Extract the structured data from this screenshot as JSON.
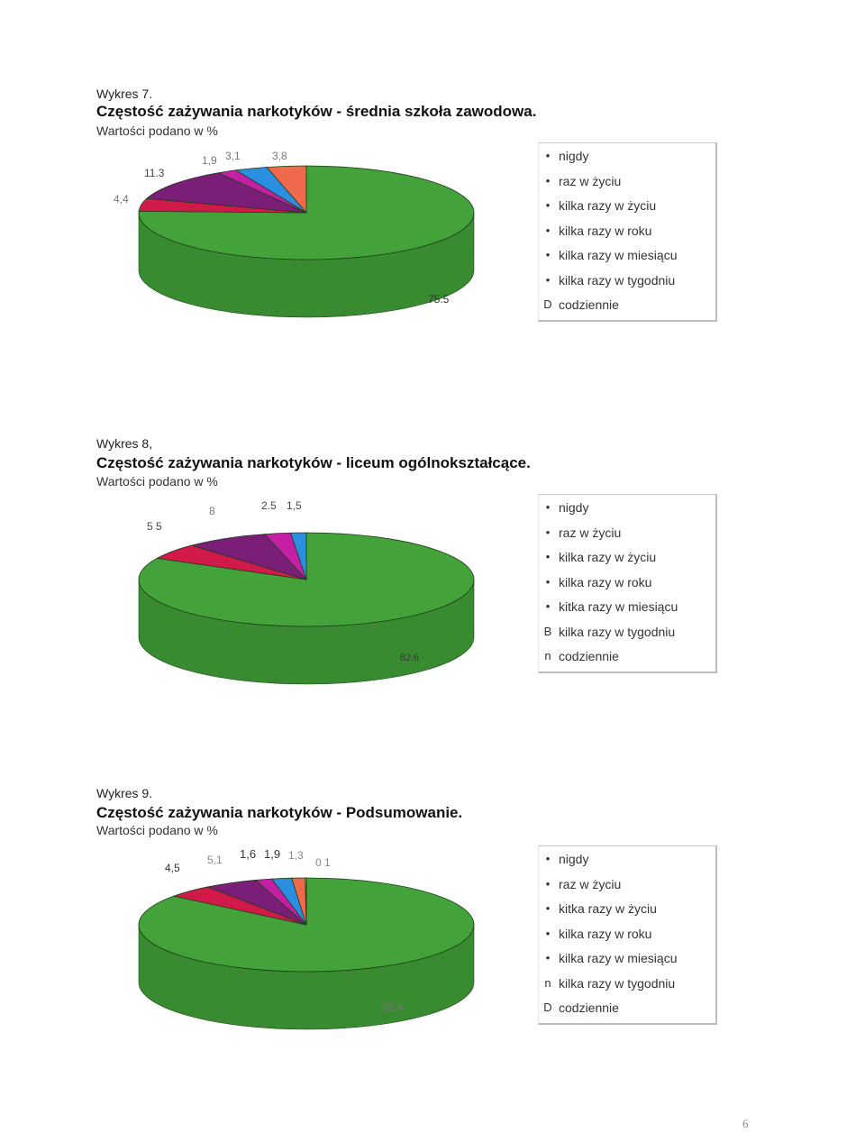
{
  "charts": [
    {
      "number_label": "Wykres  7.",
      "title": "Częstość zażywania narkotyków - średnia szkoła zawodowa.",
      "subtitle": "Wartości podano w %",
      "value_labels": [
        "75.5",
        "4,4",
        "11.3",
        "1,9",
        "3,1",
        "3,8"
      ],
      "legend": [
        {
          "marker": "•",
          "label": "nigdy"
        },
        {
          "marker": "•",
          "label": "raz w życiu"
        },
        {
          "marker": "•",
          "label": "kilka razy w życiu"
        },
        {
          "marker": "•",
          "label": "kilka razy w roku"
        },
        {
          "marker": "•",
          "label": "kilka razy w miesiącu"
        },
        {
          "marker": "•",
          "label": "kilka razy w tygodniu"
        },
        {
          "marker": "D",
          "label": "codziennie"
        }
      ]
    },
    {
      "number_label": "Wykres  8,",
      "title": "Częstość zażywania narkotyków - liceum ogólnokształcące.",
      "subtitle": "Wartości podano w %",
      "value_labels": [
        "82.6",
        "5 5",
        "8",
        "2.5",
        "1,5"
      ],
      "legend": [
        {
          "marker": "•",
          "label": "nigdy"
        },
        {
          "marker": "•",
          "label": "raz w życiu"
        },
        {
          "marker": "•",
          "label": "kilka razy w życiu"
        },
        {
          "marker": "•",
          "label": "kilka razy w roku"
        },
        {
          "marker": "•",
          "label": "kitka razy w miesiącu"
        },
        {
          "marker": "B",
          "label": "kilka razy w tygodniu"
        },
        {
          "marker": "n",
          "label": "codziennie"
        }
      ]
    },
    {
      "number_label": "Wykres  9.",
      "title": "Częstość zażywania narkotyków - Podsumowanie.",
      "subtitle": "Wartości podano w %",
      "value_labels": [
        "85,4",
        "4,5",
        "5,1",
        "1,6",
        "1,9",
        "1,3",
        "0 1"
      ],
      "legend": [
        {
          "marker": "•",
          "label": "nigdy"
        },
        {
          "marker": "•",
          "label": "raz w życiu"
        },
        {
          "marker": "•",
          "label": "kitka razy w życiu"
        },
        {
          "marker": "•",
          "label": "kilka razy w roku"
        },
        {
          "marker": "•",
          "label": "kilka razy w miesiącu"
        },
        {
          "marker": "n",
          "label": "kilka razy w tygodniu"
        },
        {
          "marker": "D",
          "label": "codziennie"
        }
      ]
    }
  ],
  "chart_data": [
    {
      "type": "pie",
      "title": "Częstość zażywania narkotyków - średnia szkoła zawodowa.",
      "categories": [
        "nigdy",
        "raz w życiu",
        "kilka razy w życiu",
        "kilka razy w roku",
        "kilka razy w miesiącu",
        "kilka razy w tygodniu",
        "codziennie"
      ],
      "values": [
        75.5,
        4.4,
        11.3,
        1.9,
        3.1,
        3.8,
        0
      ],
      "colors": [
        "#43a33a",
        "#d11a4a",
        "#7a1e78",
        "#c51fa6",
        "#2a8fe0",
        "#ef6a4c",
        "#e8e85a"
      ]
    },
    {
      "type": "pie",
      "title": "Częstość zażywania narkotyków - liceum ogólnokształcące.",
      "categories": [
        "nigdy",
        "raz w życiu",
        "kilka razy w życiu",
        "kilka razy w roku",
        "kilka razy w miesiącu",
        "kilka razy w tygodniu",
        "codziennie"
      ],
      "values": [
        82.6,
        5.5,
        8,
        2.5,
        1.5,
        0,
        0
      ],
      "colors": [
        "#43a33a",
        "#d11a4a",
        "#7a1e78",
        "#c51fa6",
        "#2a8fe0",
        "#ef6a4c",
        "#e8e85a"
      ]
    },
    {
      "type": "pie",
      "title": "Częstość zażywania narkotyków - Podsumowanie.",
      "categories": [
        "nigdy",
        "raz w życiu",
        "kilka razy w życiu",
        "kilka razy w roku",
        "kilka razy w miesiącu",
        "kilka razy w tygodniu",
        "codziennie"
      ],
      "values": [
        85.4,
        4.5,
        5.1,
        1.6,
        1.9,
        1.3,
        0.1
      ],
      "colors": [
        "#43a33a",
        "#d11a4a",
        "#7a1e78",
        "#c51fa6",
        "#2a8fe0",
        "#ef6a4c",
        "#e8e85a"
      ]
    }
  ],
  "page_number": "6"
}
